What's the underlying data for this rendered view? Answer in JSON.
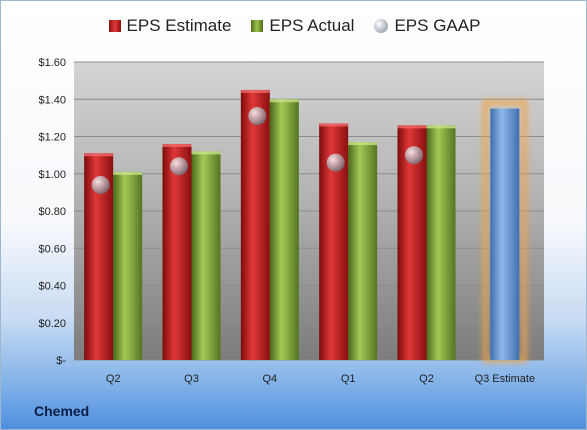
{
  "chart_data": {
    "type": "bar",
    "categories": [
      "Q2",
      "Q3",
      "Q4",
      "Q1",
      "Q2",
      "Q3 Estimate"
    ],
    "series": [
      {
        "name": "EPS Estimate",
        "values": [
          1.11,
          1.16,
          1.45,
          1.27,
          1.26,
          null
        ],
        "color": "#c72626"
      },
      {
        "name": "EPS Actual",
        "values": [
          1.01,
          1.12,
          1.4,
          1.17,
          1.26,
          null
        ],
        "color": "#86aa3c"
      },
      {
        "name": "EPS GAAP",
        "values": [
          0.94,
          1.04,
          1.31,
          1.06,
          1.1,
          null
        ],
        "color": "#9aa3ad"
      }
    ],
    "projection": {
      "category": "Q3 Estimate",
      "value": 1.35,
      "color": "#6a9ad6",
      "glow": "#f0a54a"
    },
    "ylim": [
      0,
      1.6
    ],
    "yticks": [
      "$-",
      "$0.20",
      "$0.40",
      "$0.60",
      "$0.80",
      "$1.00",
      "$1.20",
      "$1.40",
      "$1.60"
    ],
    "grid": true,
    "legend_position": "top",
    "company": "Chemed"
  }
}
